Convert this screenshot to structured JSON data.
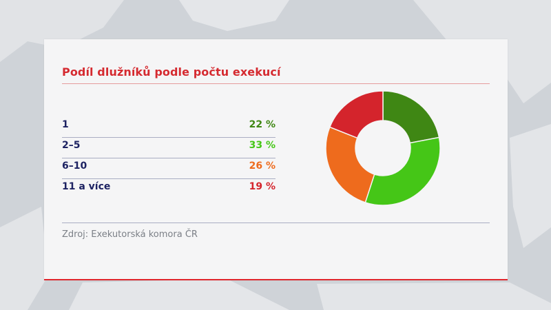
{
  "colors": {
    "title": "#d52a30",
    "label": "#1d2262",
    "source": "#7b7f86",
    "accent_line": "#e0262d"
  },
  "chart_data": {
    "type": "pie",
    "title": "Podíl dlužníků podle počtu exekucí",
    "donut": true,
    "categories": [
      "1",
      "2–5",
      "6–10",
      "11 a více"
    ],
    "values": [
      22,
      33,
      26,
      19
    ],
    "value_labels": [
      "22 %",
      "33 %",
      "26 %",
      "19 %"
    ],
    "unit": "%",
    "colors": [
      "#3f8714",
      "#45c617",
      "#ee6b1d",
      "#d4242c"
    ],
    "legend": "left-table",
    "source": "Zdroj: Exekutorská komora ČR"
  }
}
